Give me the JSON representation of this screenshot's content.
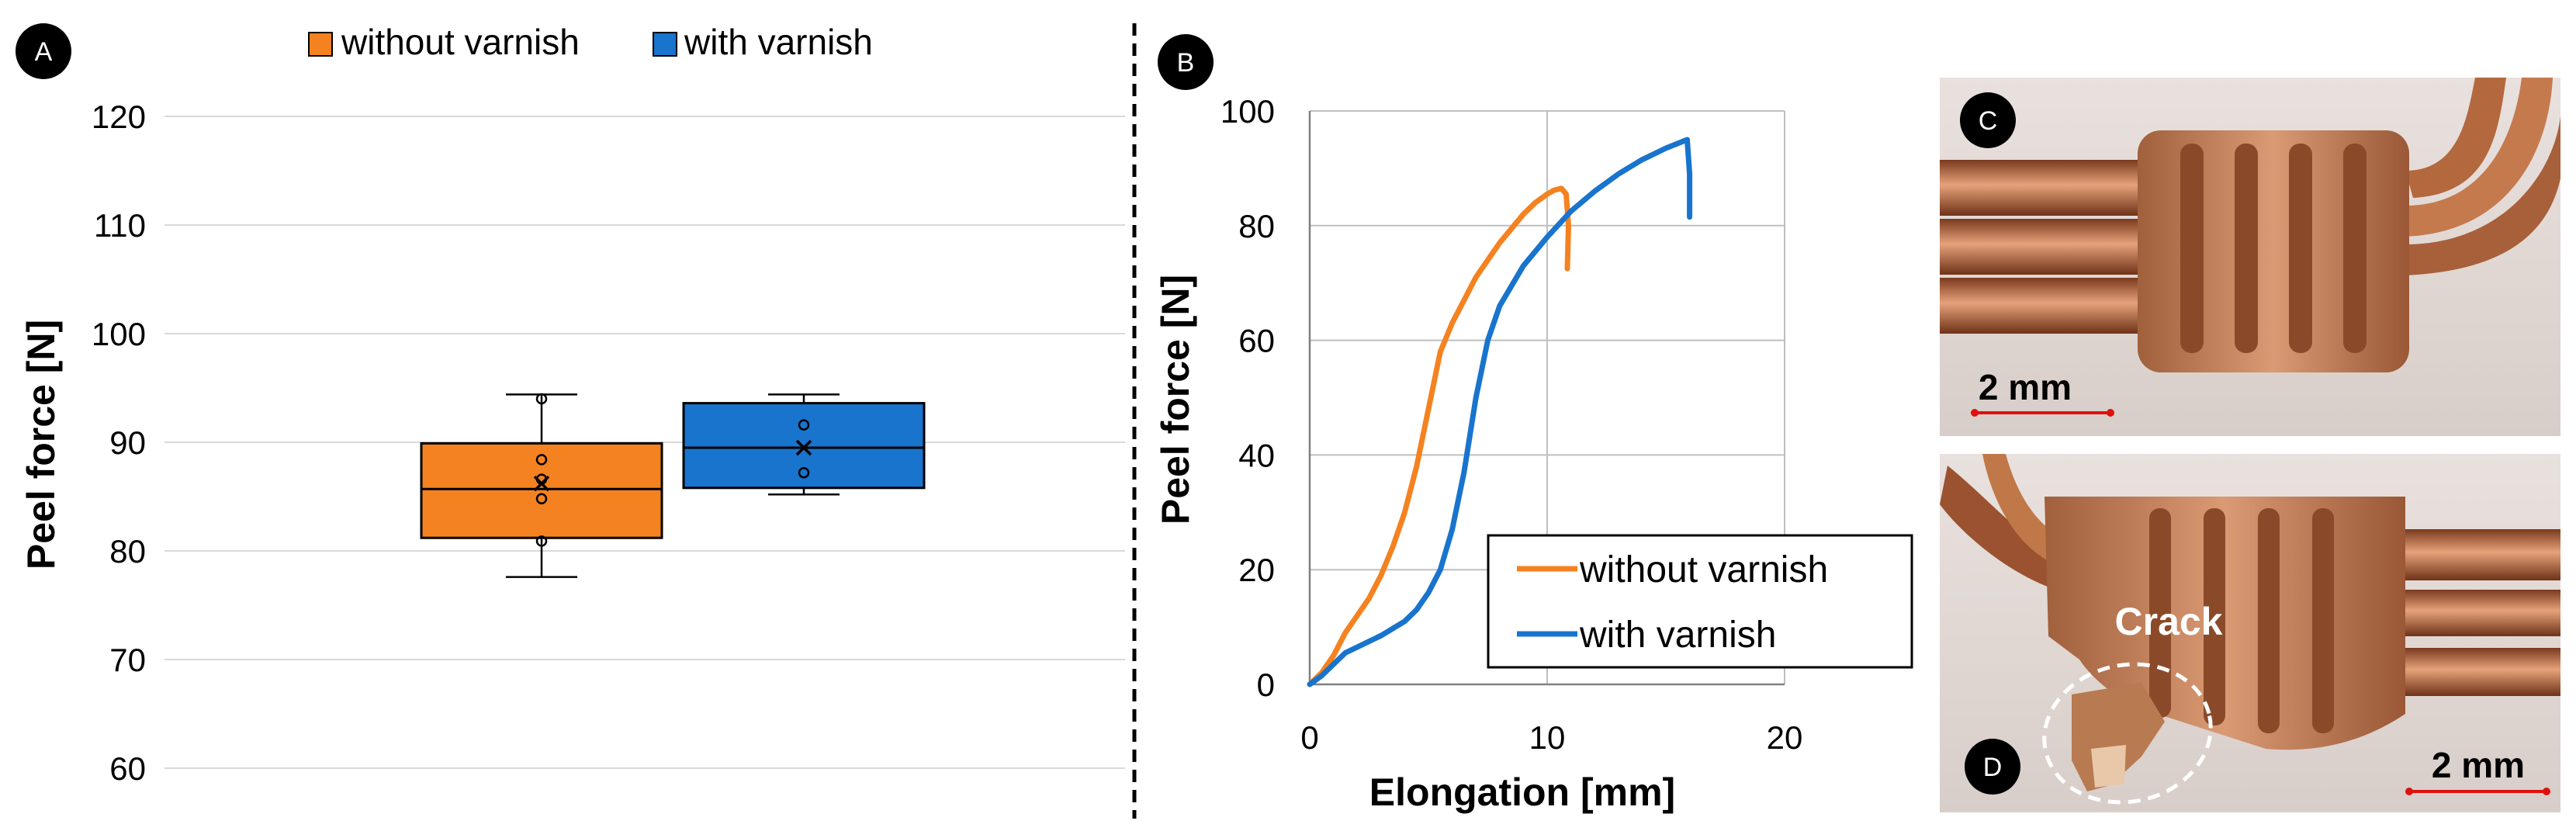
{
  "panels": {
    "A": "A",
    "B": "B",
    "C": "C",
    "D": "D"
  },
  "photos": {
    "c_scale": "2 mm",
    "d_scale": "2 mm",
    "d_crack": "Crack"
  },
  "chart_data": [
    {
      "type": "box",
      "panel": "A",
      "title": "",
      "xlabel": "",
      "ylabel": "Peel force [N]",
      "ylim": [
        60,
        120
      ],
      "yticks": [
        60,
        70,
        80,
        90,
        100,
        110,
        120
      ],
      "grid": true,
      "legend": [
        "without varnish",
        "with varnish"
      ],
      "legend_position": "top",
      "series": [
        {
          "name": "without varnish",
          "color": "#F58220",
          "min": 77.6,
          "q1": 81.2,
          "median": 85.7,
          "q3": 89.9,
          "max": 94.4,
          "mean": 86.2,
          "points": [
            94.0,
            88.4,
            86.6,
            84.8,
            80.9
          ]
        },
        {
          "name": "with varnish",
          "color": "#1874CD",
          "min": 85.2,
          "q1": 85.8,
          "median": 89.5,
          "q3": 93.6,
          "max": 94.4,
          "mean": 89.5,
          "points": [
            91.6,
            87.2
          ]
        }
      ]
    },
    {
      "type": "line",
      "panel": "B",
      "title": "",
      "xlabel": "Elongation [mm]",
      "ylabel": "Peel force [N]",
      "xlim": [
        0,
        20
      ],
      "ylim": [
        0,
        100
      ],
      "xticks": [
        0,
        10,
        20
      ],
      "yticks": [
        0,
        20,
        40,
        60,
        80,
        100
      ],
      "grid": true,
      "legend_position": "bottom-right",
      "series": [
        {
          "name": "without varnish",
          "color": "#F58220",
          "x": [
            0,
            0.5,
            1.0,
            1.5,
            2.0,
            2.5,
            3.0,
            3.5,
            4.0,
            4.5,
            5.0,
            5.5,
            6.0,
            6.5,
            7.0,
            7.5,
            8.0,
            8.5,
            9.0,
            9.5,
            10.0,
            10.3,
            10.6,
            10.8,
            10.9,
            10.85
          ],
          "y": [
            0,
            2,
            5,
            9,
            12,
            15,
            19,
            24,
            30,
            38,
            48,
            58,
            63,
            67,
            71,
            74,
            77,
            79.5,
            82,
            84,
            85.5,
            86.2,
            86.5,
            85.5,
            80,
            72.5
          ]
        },
        {
          "name": "with varnish",
          "color": "#1874CD",
          "x": [
            0,
            0.5,
            1.0,
            1.5,
            2.0,
            3.0,
            4.0,
            4.5,
            5.0,
            5.5,
            6.0,
            6.5,
            7.0,
            7.5,
            8.0,
            9.0,
            10.0,
            11.0,
            12.0,
            13.0,
            14.0,
            15.0,
            15.6,
            15.9,
            16.0,
            16.0
          ],
          "y": [
            0,
            1.5,
            3.5,
            5.5,
            6.5,
            8.5,
            11,
            13,
            16,
            20,
            27,
            37,
            50,
            60,
            66,
            73,
            78,
            82.5,
            86,
            89,
            91.5,
            93.5,
            94.5,
            95,
            89,
            81.5
          ]
        }
      ]
    }
  ]
}
